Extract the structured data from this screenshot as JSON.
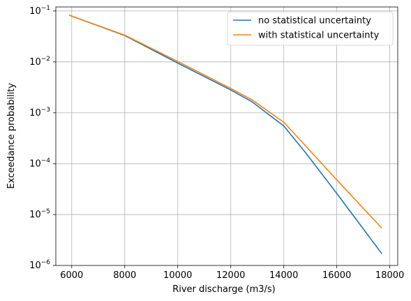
{
  "chart_data": {
    "type": "line",
    "title": "",
    "xlabel": "River discharge (m3/s)",
    "ylabel": "Exceedance probability",
    "xlim": [
      5400,
      18300
    ],
    "ylim": [
      1e-06,
      0.12
    ],
    "yscale": "log",
    "grid": true,
    "legend_position": "top-right",
    "xticks": [
      {
        "value": 6000,
        "label": "6000"
      },
      {
        "value": 8000,
        "label": "8000"
      },
      {
        "value": 10000,
        "label": "10000"
      },
      {
        "value": 12000,
        "label": "12000"
      },
      {
        "value": 14000,
        "label": "14000"
      },
      {
        "value": 16000,
        "label": "16000"
      },
      {
        "value": 18000,
        "label": "18000"
      }
    ],
    "yticks": [
      {
        "value": 1e-06,
        "base": "10",
        "exp": "−6"
      },
      {
        "value": 1e-05,
        "base": "10",
        "exp": "−5"
      },
      {
        "value": 0.0001,
        "base": "10",
        "exp": "−4"
      },
      {
        "value": 0.001,
        "base": "10",
        "exp": "−3"
      },
      {
        "value": 0.01,
        "base": "10",
        "exp": "−2"
      },
      {
        "value": 0.1,
        "base": "10",
        "exp": "−1"
      }
    ],
    "series": [
      {
        "name": "no statistical uncertainty",
        "color": "#1f77b4",
        "x": [
          5900,
          8000,
          10000,
          12000,
          12800,
          14000,
          14800,
          16000,
          17700
        ],
        "y": [
          0.083,
          0.033,
          0.0095,
          0.0028,
          0.00165,
          0.00055,
          0.00017,
          2.6e-05,
          1.7e-06
        ]
      },
      {
        "name": "with statistical uncertainty",
        "color": "#ff7f0e",
        "x": [
          5900,
          8000,
          10000,
          12000,
          12800,
          14000,
          14800,
          16000,
          17700
        ],
        "y": [
          0.083,
          0.0335,
          0.0102,
          0.003,
          0.0018,
          0.00065,
          0.00023,
          4.8e-05,
          5.4e-06
        ]
      }
    ]
  }
}
